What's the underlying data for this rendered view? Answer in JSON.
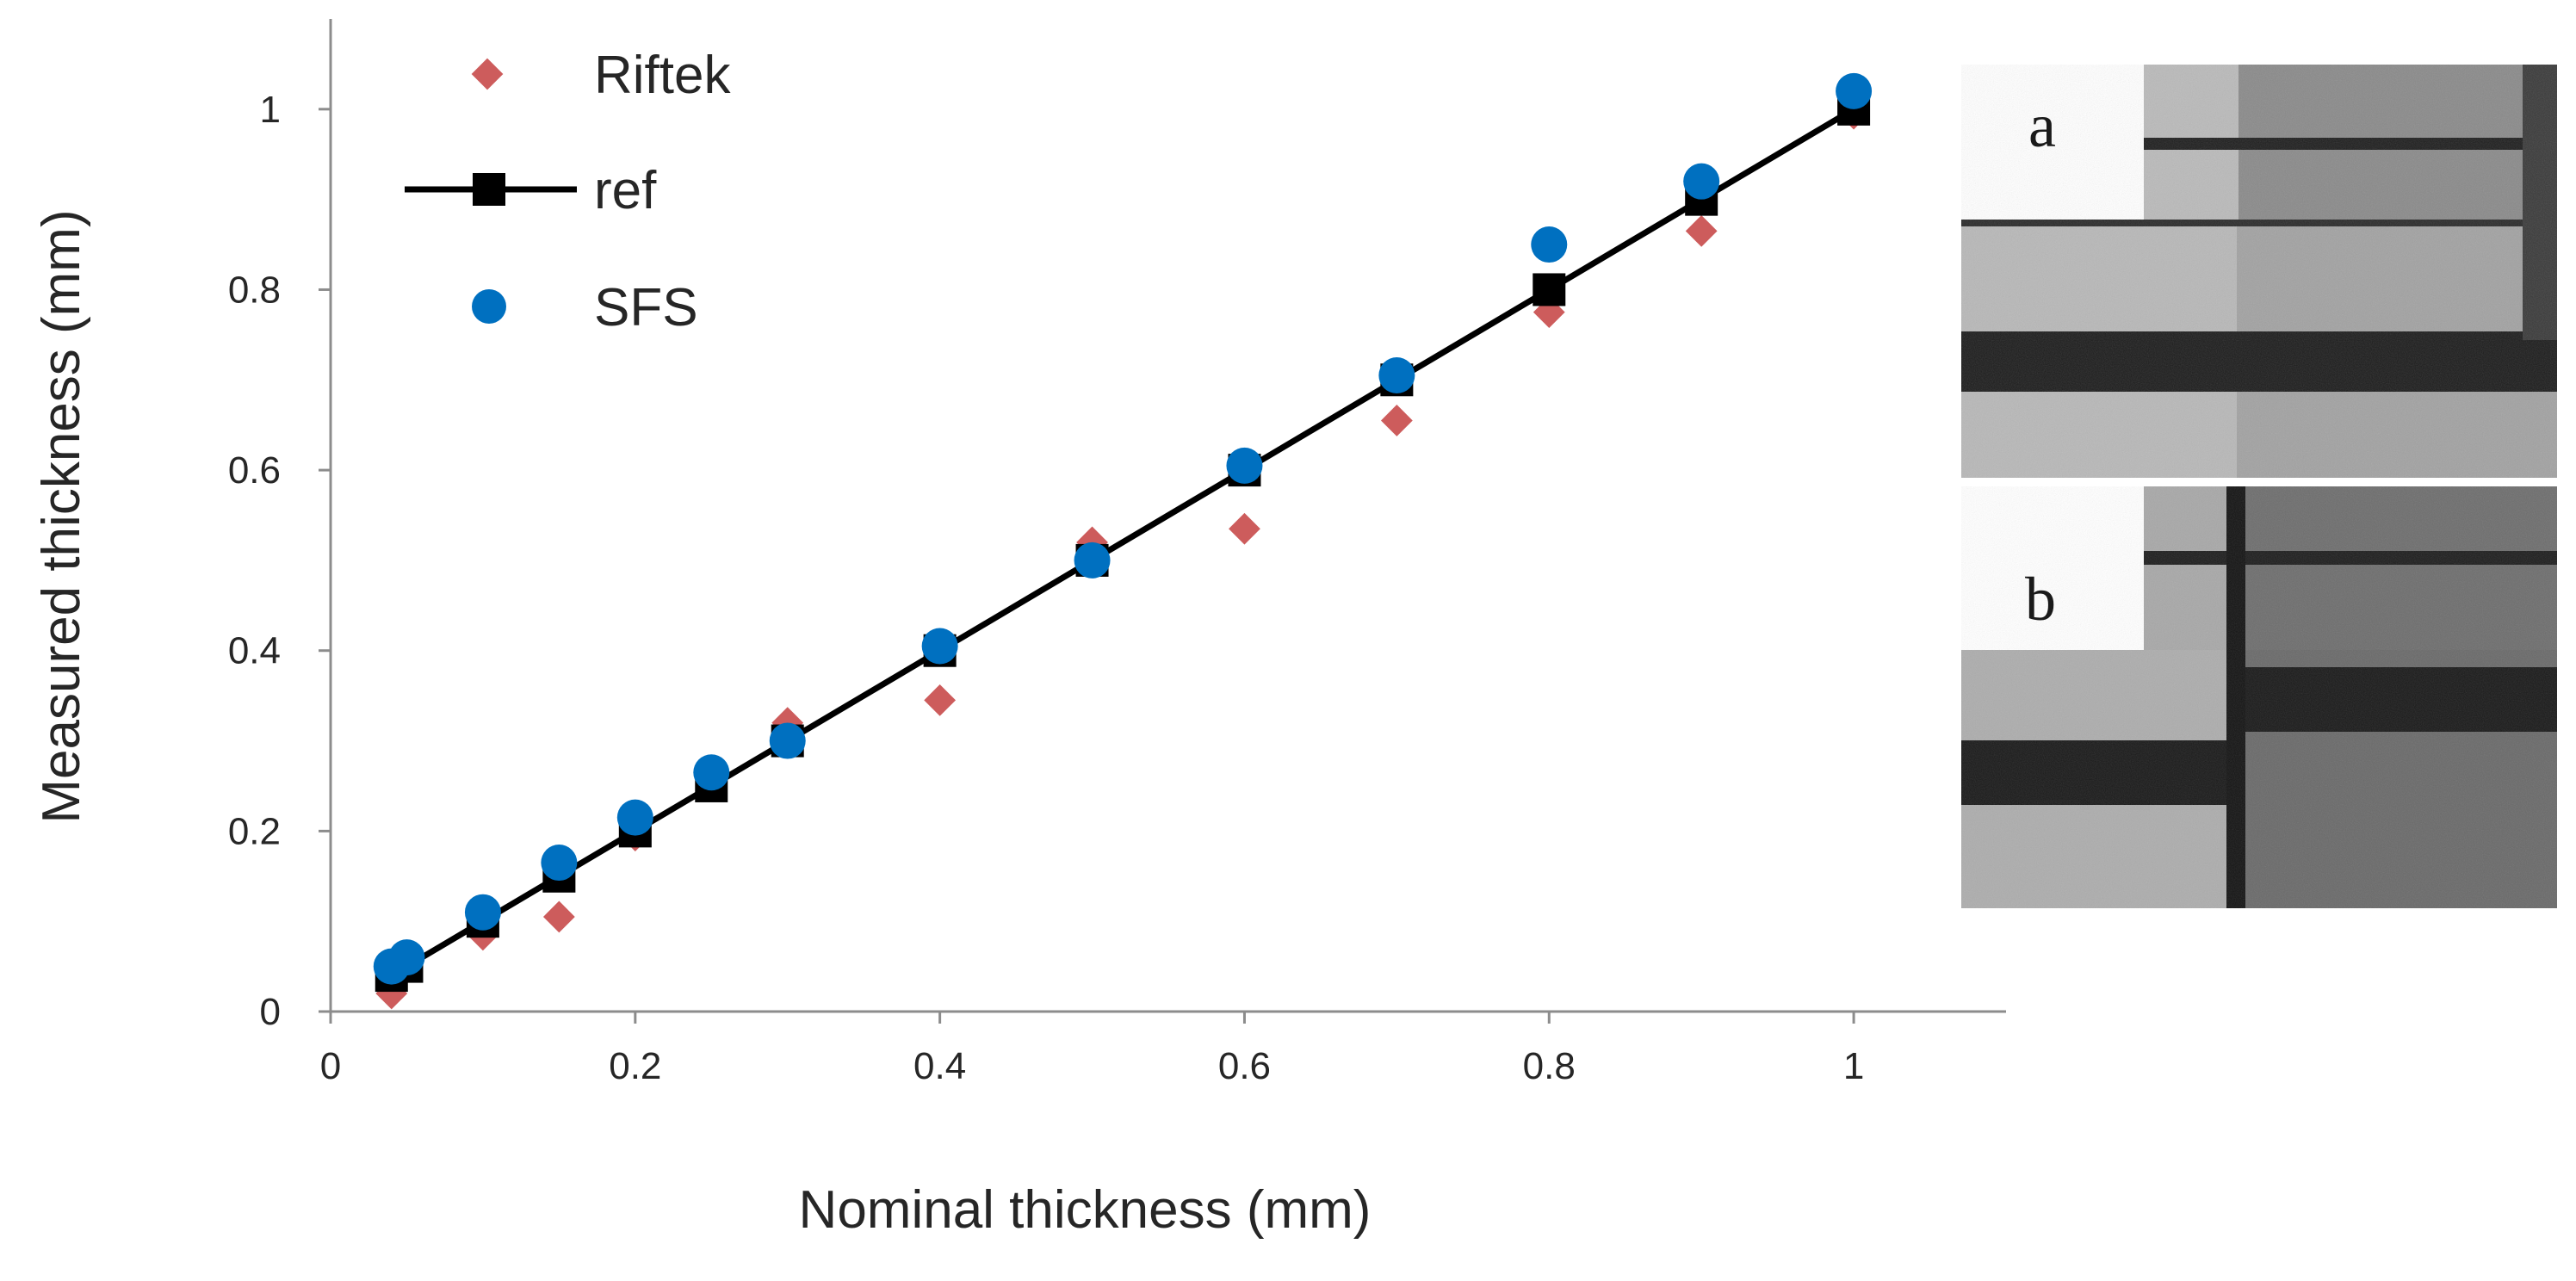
{
  "chart_data": {
    "type": "scatter",
    "xlabel": "Nominal thickness (mm)",
    "ylabel": "Measured thickness (mm)",
    "xlim": [
      0,
      1.1
    ],
    "ylim": [
      0,
      1.1
    ],
    "xticks": [
      0,
      0.2,
      0.4,
      0.6,
      0.8,
      1
    ],
    "yticks": [
      0,
      0.2,
      0.4,
      0.6,
      0.8,
      1
    ],
    "xtick_labels": [
      "0",
      "0.2",
      "0.4",
      "0.6",
      "0.8",
      "1"
    ],
    "ytick_labels": [
      "0",
      "0.2",
      "0.4",
      "0.6",
      "0.8",
      "1"
    ],
    "grid": false,
    "legend_position": "top-left",
    "series": [
      {
        "name": "Riftek",
        "marker": "diamond",
        "color": "#cd5c5c",
        "x": [
          0.04,
          0.05,
          0.1,
          0.15,
          0.2,
          0.25,
          0.3,
          0.4,
          0.5,
          0.6,
          0.7,
          0.8,
          0.9,
          1.0
        ],
        "y": [
          0.02,
          0.05,
          0.085,
          0.105,
          0.195,
          0.25,
          0.32,
          0.345,
          0.52,
          0.535,
          0.655,
          0.775,
          0.865,
          0.995
        ]
      },
      {
        "name": "ref",
        "marker": "square",
        "line": true,
        "color": "#000000",
        "x": [
          0.04,
          0.05,
          0.1,
          0.15,
          0.2,
          0.25,
          0.3,
          0.4,
          0.5,
          0.6,
          0.7,
          0.8,
          0.9,
          1.0
        ],
        "y": [
          0.04,
          0.05,
          0.1,
          0.15,
          0.2,
          0.25,
          0.3,
          0.4,
          0.5,
          0.6,
          0.7,
          0.8,
          0.9,
          1.0
        ]
      },
      {
        "name": "SFS",
        "marker": "circle",
        "color": "#0070c0",
        "x": [
          0.04,
          0.05,
          0.1,
          0.15,
          0.2,
          0.25,
          0.3,
          0.4,
          0.5,
          0.6,
          0.7,
          0.8,
          0.9,
          1.0
        ],
        "y": [
          0.05,
          0.06,
          0.11,
          0.165,
          0.215,
          0.265,
          0.3,
          0.405,
          0.5,
          0.605,
          0.705,
          0.85,
          0.92,
          1.02
        ]
      }
    ]
  },
  "inset": {
    "panel_a_label": "a",
    "panel_b_label": "b",
    "description_colors": {
      "dark": "#1e1e1e",
      "mid": "#5a5a5a",
      "light": "#b4b4b4"
    }
  }
}
